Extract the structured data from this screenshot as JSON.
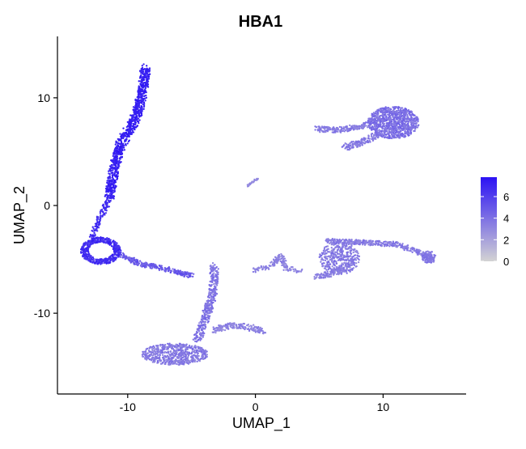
{
  "chart_data": {
    "type": "scatter",
    "title": "HBA1",
    "xlabel": "UMAP_1",
    "ylabel": "UMAP_2",
    "xlim": [
      -15.5,
      16.5
    ],
    "ylim": [
      -17.5,
      15.7
    ],
    "xticks": [
      -10,
      0,
      10
    ],
    "xtick_labels": [
      "-10",
      "0",
      "10"
    ],
    "yticks": [
      10,
      0,
      -10
    ],
    "ytick_labels": [
      "10",
      "0",
      "-10"
    ],
    "grid": false,
    "legend": {
      "placement": "right",
      "type": "colorbar",
      "range": [
        0,
        7.8
      ],
      "ticks": [
        0,
        2,
        4,
        6
      ],
      "tick_labels": [
        "0",
        "2",
        "4",
        "6"
      ],
      "color_low": "#d3d3d3",
      "color_high": "#2b12f4"
    },
    "point_color_low": "#d3d3d3",
    "point_color_high": "#2b12f4",
    "clusters": [
      {
        "region": "upper-left strand",
        "x_range": [
          -11.6,
          -7.8
        ],
        "y_range": [
          0.5,
          13.0
        ],
        "expression_mean": 7.2
      },
      {
        "region": "left hub",
        "x_range": [
          -13.8,
          -10.5
        ],
        "y_range": [
          -5.8,
          -1.8
        ],
        "expression_mean": 6.8
      },
      {
        "region": "bridge to bottom",
        "x_range": [
          -10.5,
          -4.5
        ],
        "y_range": [
          -7.0,
          -5.0
        ],
        "expression_mean": 4.8
      },
      {
        "region": "bottom stalk",
        "x_range": [
          -5.0,
          -3.0
        ],
        "y_range": [
          -12.5,
          -5.5
        ],
        "expression_mean": 3.8
      },
      {
        "region": "bottom basin",
        "x_range": [
          -10.0,
          -4.0
        ],
        "y_range": [
          -15.0,
          -12.8
        ],
        "expression_mean": 3.5
      },
      {
        "region": "bottom right branch",
        "x_range": [
          -3.0,
          0.8
        ],
        "y_range": [
          -12.0,
          -11.0
        ],
        "expression_mean": 3.2
      },
      {
        "region": "small center link",
        "x_range": [
          -0.8,
          0.3
        ],
        "y_range": [
          1.6,
          2.6
        ],
        "expression_mean": 3.0
      },
      {
        "region": "center-right small",
        "x_range": [
          -0.3,
          3.7
        ],
        "y_range": [
          -6.3,
          -4.2
        ],
        "expression_mean": 3.3
      },
      {
        "region": "upper right blob",
        "x_range": [
          4.5,
          12.8
        ],
        "y_range": [
          5.2,
          9.4
        ],
        "expression_mean": 3.9
      },
      {
        "region": "right lower branch",
        "x_range": [
          4.8,
          14.3
        ],
        "y_range": [
          -6.9,
          -2.8
        ],
        "expression_mean": 3.6
      }
    ]
  }
}
